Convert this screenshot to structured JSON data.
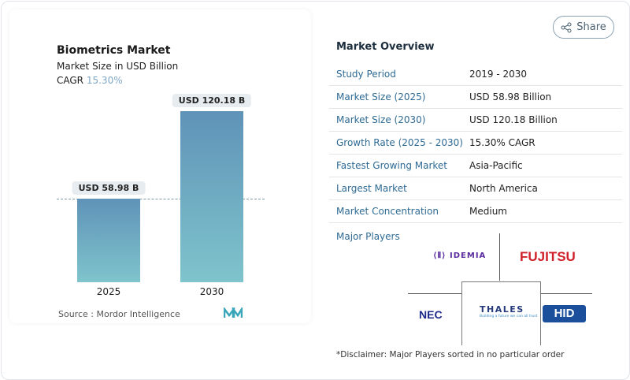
{
  "share_label": "Share",
  "chart_data": {
    "type": "bar",
    "title": "Biometrics Market",
    "subtitle": "Market Size in USD Billion",
    "cagr_label": "CAGR",
    "cagr_value": "15.30%",
    "categories": [
      "2025",
      "2030"
    ],
    "values": [
      58.98,
      120.18
    ],
    "data_labels": [
      "USD 58.98 B",
      "USD 120.18 B"
    ],
    "bar_color": "#5f93b8",
    "source": "Source :  Mordor Intelligence"
  },
  "overview": {
    "title": "Market Overview",
    "rows": [
      {
        "k": "Study Period",
        "v": "2019 - 2030"
      },
      {
        "k": "Market Size (2025)",
        "v": "USD 58.98 Billion"
      },
      {
        "k": "Market Size (2030)",
        "v": "USD 120.18 Billion"
      },
      {
        "k": "Growth Rate (2025 - 2030)",
        "v": "15.30% CAGR"
      },
      {
        "k": "Fastest Growing Market",
        "v": "Asia-Pacific"
      },
      {
        "k": "Largest Market",
        "v": "North America"
      },
      {
        "k": "Market Concentration",
        "v": "Medium"
      }
    ],
    "major_players_label": "Major Players",
    "players": [
      "IDEMIA",
      "FUJITSU",
      "NEC",
      "THALES",
      "HID"
    ],
    "thales_tagline": "Building a future we can all trust",
    "disclaimer": "*Disclaimer: Major Players sorted in no particular order"
  }
}
